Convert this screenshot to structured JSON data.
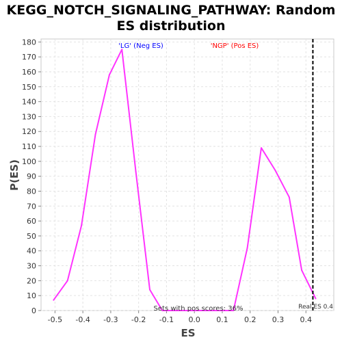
{
  "chart_data": {
    "type": "line",
    "title_line1": "KEGG_NOTCH_SIGNALING_PATHWAY: Random",
    "title_line2": "ES distribution",
    "xlabel": "ES",
    "ylabel": "P(ES)",
    "xlim": [
      -0.55,
      0.5
    ],
    "ylim": [
      0,
      182
    ],
    "xticks": [
      -0.5,
      -0.4,
      -0.3,
      -0.2,
      -0.1,
      0.0,
      0.1,
      0.2,
      0.3,
      0.4
    ],
    "xtick_labels": [
      "-0.5",
      "-0.4",
      "-0.3",
      "-0.2",
      "-0.1",
      "0.0",
      "0.1",
      "0.2",
      "0.3",
      "0.4"
    ],
    "yticks": [
      0,
      10,
      20,
      30,
      40,
      50,
      60,
      70,
      80,
      90,
      100,
      110,
      120,
      130,
      140,
      150,
      160,
      170,
      180
    ],
    "grid": true,
    "series": [
      {
        "color": "#ff33ff",
        "x": [
          -0.505,
          -0.455,
          -0.405,
          -0.355,
          -0.305,
          -0.26,
          -0.21,
          -0.16,
          -0.115,
          -0.07,
          -0.02,
          0.03,
          0.08,
          0.14,
          0.19,
          0.24,
          0.29,
          0.34,
          0.385,
          0.435
        ],
        "y": [
          7,
          20,
          57,
          118,
          158,
          175,
          93,
          14,
          0,
          0,
          0,
          0,
          0,
          0,
          42,
          109,
          94,
          76,
          27,
          8
        ]
      }
    ],
    "vline": {
      "x": 0.425,
      "style": "dashed",
      "color": "#000000",
      "label": "Real ES 0.4"
    },
    "annotations": {
      "neg": {
        "text": "'LG' (Neg ES)",
        "color": "#0000ff"
      },
      "pos": {
        "text": "'NGP' (Pos ES)",
        "color": "#ff0000"
      },
      "pos_scores": {
        "text": "Sets with pos scores: 36%"
      }
    }
  }
}
